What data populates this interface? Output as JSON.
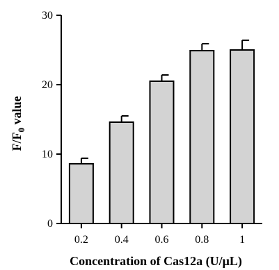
{
  "chart_data": {
    "type": "bar",
    "categories": [
      "0.2",
      "0.4",
      "0.6",
      "0.8",
      "1"
    ],
    "values": [
      8.6,
      14.6,
      20.5,
      24.9,
      25.0
    ],
    "errors": [
      0.8,
      0.9,
      0.9,
      1.0,
      1.4
    ],
    "xlabel": "Concentration of Cas12a (U/μL)",
    "ylabel_main": "F/F",
    "ylabel_sub": "0",
    "ylabel_tail": " value",
    "ylim": [
      0,
      30
    ],
    "yticks": [
      0,
      10,
      20,
      30
    ],
    "bar_color": "#d3d3d3",
    "edge_color": "#000000",
    "grid": false
  }
}
